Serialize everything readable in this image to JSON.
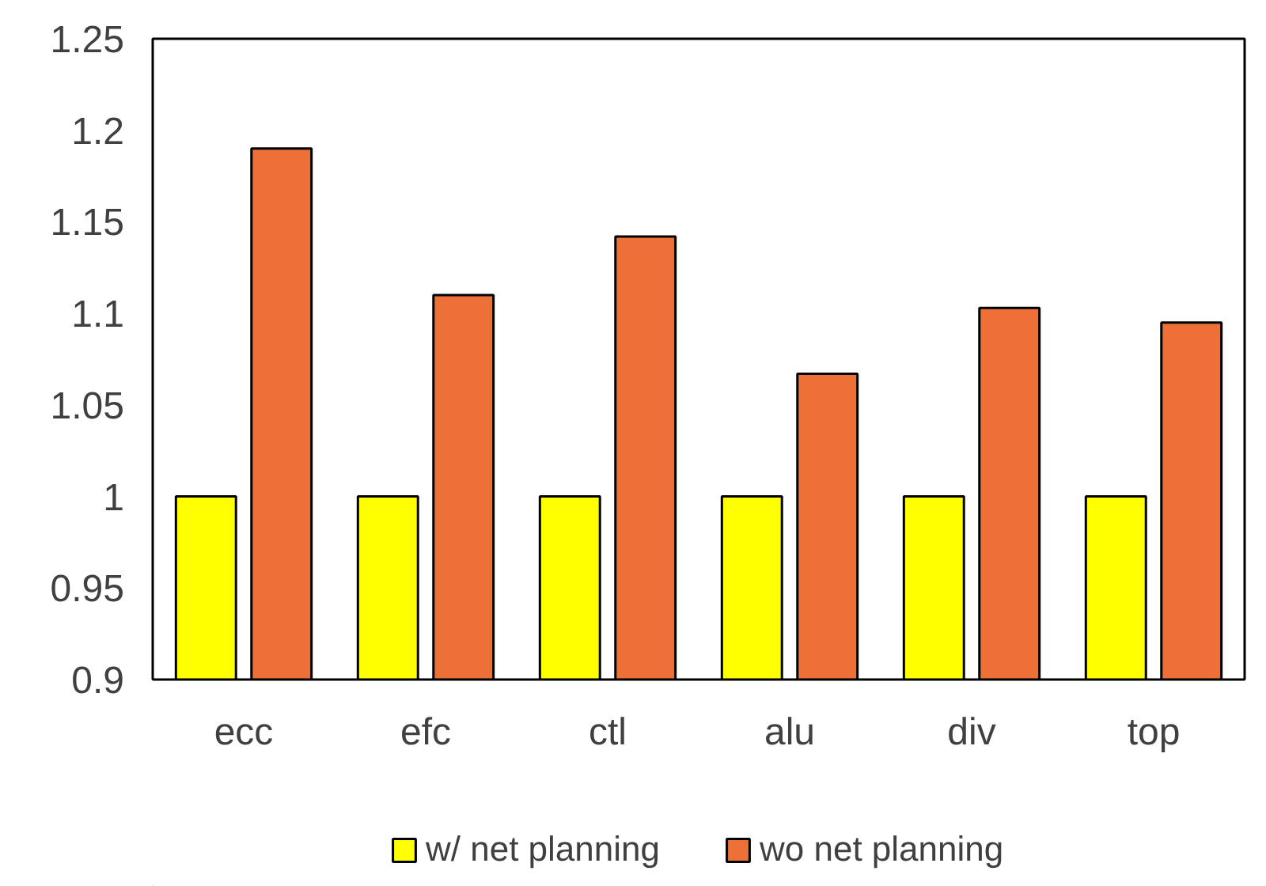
{
  "chart_data": {
    "type": "bar",
    "categories": [
      "ecc",
      "efc",
      "ctl",
      "alu",
      "div",
      "top"
    ],
    "series": [
      {
        "name": "w/ net planning",
        "color": "#ffff00",
        "values": [
          1,
          1,
          1,
          1,
          1,
          1
        ]
      },
      {
        "name": "wo net planning",
        "color": "#ed7136",
        "values": [
          1.19,
          1.11,
          1.142,
          1.067,
          1.103,
          1.095
        ]
      }
    ],
    "ylim": [
      0.9,
      1.25
    ],
    "yticks": [
      0.9,
      0.95,
      1,
      1.05,
      1.1,
      1.15,
      1.2,
      1.25
    ],
    "grid": false,
    "legend": "bottom"
  }
}
